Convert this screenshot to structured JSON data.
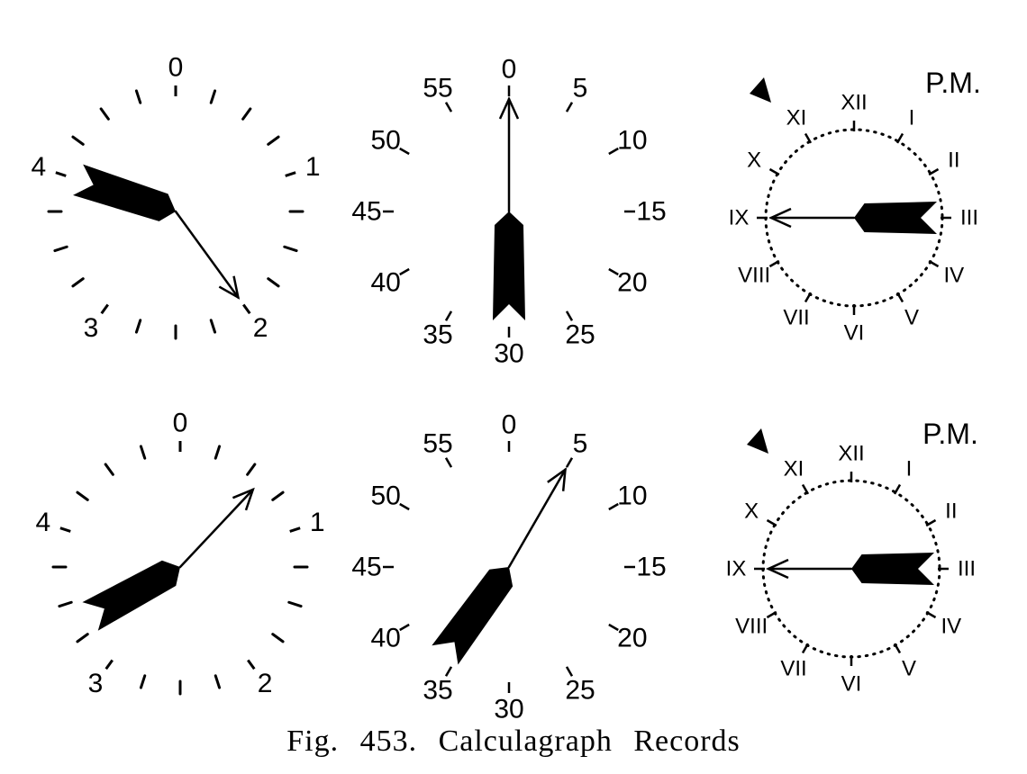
{
  "figure": {
    "caption": "Fig. 453.   Calculagraph Records",
    "ink_color": "#000000",
    "background_color": "#ffffff"
  },
  "dials": {
    "hours_dial": {
      "labels": [
        "0",
        "1",
        "2",
        "3",
        "4"
      ],
      "tick_count": 20
    },
    "minutes_dial": {
      "labels": [
        "0",
        "5",
        "10",
        "15",
        "20",
        "25",
        "30",
        "35",
        "40",
        "45",
        "50",
        "55"
      ],
      "tick_count": 60
    },
    "clock_dial": {
      "indicator": "P.M.",
      "indicator_icon": "triangle-marker-icon",
      "numerals": [
        "XII",
        "I",
        "II",
        "III",
        "IV",
        "V",
        "VI",
        "VII",
        "VIII",
        "IX",
        "X",
        "XI"
      ]
    }
  },
  "records": [
    {
      "name": "upper",
      "hours": {
        "arrow_reading": 2.0,
        "arrow_icon": "arrow-hand-icon",
        "feather_reading": 4.0,
        "feather_icon": "feather-hand-icon"
      },
      "minutes": {
        "arrow_reading": 0,
        "arrow_icon": "arrow-hand-icon",
        "feather_reading": 30,
        "feather_icon": "feather-hand-icon"
      },
      "clock": {
        "arrow_reading": 9.0,
        "arrow_icon": "arrow-hand-icon",
        "feather_reading": 3.0,
        "feather_icon": "feather-hand-icon"
      }
    },
    {
      "name": "lower",
      "hours": {
        "arrow_reading": 0.6,
        "arrow_icon": "arrow-hand-icon",
        "feather_reading": 3.35,
        "feather_icon": "feather-hand-icon"
      },
      "minutes": {
        "arrow_reading": 5,
        "arrow_icon": "arrow-hand-icon",
        "feather_reading": 36,
        "feather_icon": "feather-hand-icon"
      },
      "clock": {
        "arrow_reading": 9.0,
        "arrow_icon": "arrow-hand-icon",
        "feather_reading": 3.0,
        "feather_icon": "feather-hand-icon"
      }
    }
  ]
}
